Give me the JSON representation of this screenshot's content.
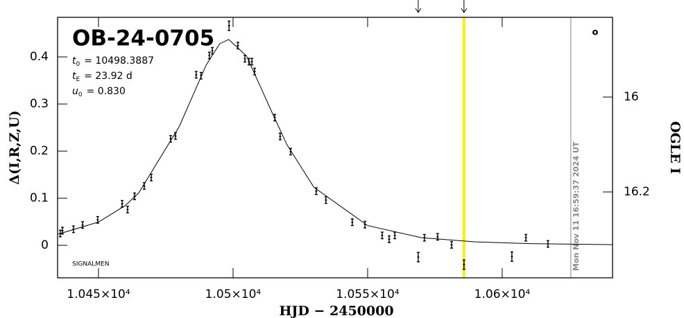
{
  "chart_data": {
    "type": "scatter",
    "title": "OB-24-0705",
    "x_label": "HJD − 2450000",
    "y_label": "Δ(I,R,Z,U)",
    "y2_label": "OGLE I",
    "params": [
      {
        "symbol": "t",
        "sub": "0",
        "text": "= 10498.3887"
      },
      {
        "symbol": "t",
        "sub": "E",
        "text": "= 23.92 d"
      },
      {
        "symbol": "u",
        "sub": "0",
        "text": "= 0.830"
      }
    ],
    "footer": "SIGNALMEN",
    "timestamp": "Mon Nov 11 16:59:37 2024 UT",
    "corner_mark": "o",
    "xlim": [
      10434.8,
      10641
    ],
    "ylim": [
      -0.069,
      0.484
    ],
    "y2lim": [
      16.381,
      15.832
    ],
    "xticks": [
      {
        "value": 10450,
        "label": "1.045×10⁴"
      },
      {
        "value": 10500,
        "label": "1.05×10⁴"
      },
      {
        "value": 10550,
        "label": "1.055×10⁴"
      },
      {
        "value": 10600,
        "label": "1.06×10⁴"
      }
    ],
    "yticks": [
      0,
      0.1,
      0.2,
      0.3,
      0.4
    ],
    "y2ticks": [
      16,
      16.2
    ],
    "highlight_x": 10585.8,
    "highlight_color": "#ffee00",
    "date_line_x": 10625.5,
    "arrows_x": [
      10568.8,
      10585.8
    ],
    "series": [
      {
        "name": "data",
        "color": "#000000",
        "x": [
          10435.8,
          10436.6,
          10440.7,
          10444.1,
          10449.7,
          10458.8,
          10460.8,
          10463.4,
          10467.0,
          10469.6,
          10476.8,
          10478.6,
          10486.3,
          10488.1,
          10491.2,
          10492.3,
          10498.5,
          10501.8,
          10504.4,
          10505.9,
          10507.0,
          10508.0,
          10515.5,
          10517.5,
          10521.4,
          10530.9,
          10534.5,
          10544.3,
          10549.0,
          10555.4,
          10558.0,
          10560.1,
          10568.8,
          10571.1,
          10576.0,
          10581.2,
          10585.8,
          10603.6,
          10608.8,
          10617.0
        ],
        "values": [
          0.025,
          0.031,
          0.034,
          0.043,
          0.054,
          0.088,
          0.076,
          0.104,
          0.126,
          0.144,
          0.226,
          0.232,
          0.362,
          0.36,
          0.403,
          0.413,
          0.466,
          0.424,
          0.396,
          0.39,
          0.39,
          0.369,
          0.271,
          0.231,
          0.199,
          0.115,
          0.096,
          0.049,
          0.044,
          0.021,
          0.013,
          0.021,
          -0.025,
          0.016,
          0.018,
          0.001,
          -0.041,
          -0.024,
          0.016,
          0.003
        ],
        "errors": [
          0.007,
          0.007,
          0.007,
          0.007,
          0.007,
          0.007,
          0.007,
          0.007,
          0.007,
          0.007,
          0.007,
          0.007,
          0.007,
          0.007,
          0.007,
          0.007,
          0.01,
          0.007,
          0.007,
          0.007,
          0.007,
          0.007,
          0.007,
          0.007,
          0.007,
          0.007,
          0.007,
          0.007,
          0.007,
          0.007,
          0.007,
          0.007,
          0.01,
          0.007,
          0.007,
          0.007,
          0.01,
          0.01,
          0.007,
          0.007
        ]
      },
      {
        "name": "model",
        "color": "#000000",
        "style": "line",
        "x": [
          10435,
          10450,
          10460,
          10465,
          10480,
          10490,
          10495,
          10498.3887,
          10505,
          10515,
          10520,
          10530,
          10550,
          10570,
          10590,
          10610,
          10641
        ],
        "values": [
          0.0236,
          0.0494,
          0.0846,
          0.1117,
          0.252,
          0.3826,
          0.4276,
          0.437,
          0.402,
          0.2755,
          0.2139,
          0.1234,
          0.0419,
          0.0162,
          0.0073,
          0.0036,
          0.0014
        ]
      }
    ]
  }
}
